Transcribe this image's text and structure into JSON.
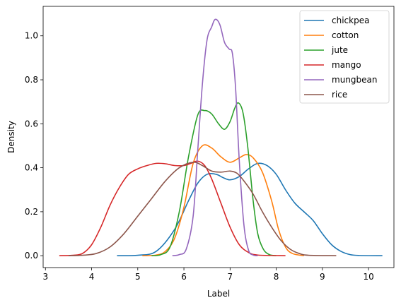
{
  "chart_data": {
    "type": "line",
    "title": "",
    "xlabel": "Label",
    "ylabel": "Density",
    "xlim": [
      2.95,
      10.55
    ],
    "ylim": [
      -0.054,
      1.134
    ],
    "xticks": [
      3,
      4,
      5,
      6,
      7,
      8,
      9,
      10
    ],
    "yticks": [
      0.0,
      0.2,
      0.4,
      0.6,
      0.8,
      1.0
    ],
    "xtick_labels": [
      "3",
      "4",
      "5",
      "6",
      "7",
      "8",
      "9",
      "10"
    ],
    "ytick_labels": [
      "0.0",
      "0.2",
      "0.4",
      "0.6",
      "0.8",
      "1.0"
    ],
    "grid": false,
    "legend_position": "top-right",
    "series": [
      {
        "name": "chickpea",
        "color": "#1f77b4",
        "points": [
          [
            4.55,
            0
          ],
          [
            5.0,
            0.002
          ],
          [
            5.4,
            0.02
          ],
          [
            5.8,
            0.12
          ],
          [
            6.1,
            0.25
          ],
          [
            6.3,
            0.33
          ],
          [
            6.5,
            0.37
          ],
          [
            6.7,
            0.37
          ],
          [
            6.85,
            0.355
          ],
          [
            7.0,
            0.345
          ],
          [
            7.2,
            0.36
          ],
          [
            7.4,
            0.395
          ],
          [
            7.6,
            0.42
          ],
          [
            7.8,
            0.41
          ],
          [
            8.0,
            0.37
          ],
          [
            8.2,
            0.3
          ],
          [
            8.4,
            0.24
          ],
          [
            8.6,
            0.2
          ],
          [
            8.8,
            0.16
          ],
          [
            9.0,
            0.1
          ],
          [
            9.2,
            0.05
          ],
          [
            9.4,
            0.02
          ],
          [
            9.6,
            0.005
          ],
          [
            9.8,
            0.001
          ],
          [
            10.3,
            0
          ]
        ]
      },
      {
        "name": "cotton",
        "color": "#ff7f0e",
        "points": [
          [
            5.1,
            0
          ],
          [
            5.4,
            0.003
          ],
          [
            5.6,
            0.02
          ],
          [
            5.8,
            0.08
          ],
          [
            6.0,
            0.22
          ],
          [
            6.2,
            0.42
          ],
          [
            6.4,
            0.5
          ],
          [
            6.6,
            0.49
          ],
          [
            6.8,
            0.45
          ],
          [
            7.0,
            0.425
          ],
          [
            7.2,
            0.445
          ],
          [
            7.35,
            0.46
          ],
          [
            7.5,
            0.445
          ],
          [
            7.7,
            0.38
          ],
          [
            7.9,
            0.25
          ],
          [
            8.05,
            0.12
          ],
          [
            8.2,
            0.04
          ],
          [
            8.35,
            0.01
          ],
          [
            8.6,
            0
          ]
        ]
      },
      {
        "name": "jute",
        "color": "#2ca02c",
        "points": [
          [
            5.3,
            0
          ],
          [
            5.5,
            0.005
          ],
          [
            5.7,
            0.04
          ],
          [
            5.9,
            0.2
          ],
          [
            6.1,
            0.45
          ],
          [
            6.3,
            0.64
          ],
          [
            6.45,
            0.66
          ],
          [
            6.6,
            0.645
          ],
          [
            6.75,
            0.6
          ],
          [
            6.88,
            0.575
          ],
          [
            7.0,
            0.61
          ],
          [
            7.1,
            0.67
          ],
          [
            7.18,
            0.695
          ],
          [
            7.28,
            0.65
          ],
          [
            7.38,
            0.5
          ],
          [
            7.5,
            0.25
          ],
          [
            7.6,
            0.1
          ],
          [
            7.72,
            0.03
          ],
          [
            7.85,
            0.005
          ],
          [
            8.0,
            0
          ]
        ]
      },
      {
        "name": "mango",
        "color": "#d62728",
        "points": [
          [
            3.3,
            0
          ],
          [
            3.6,
            0.002
          ],
          [
            3.8,
            0.01
          ],
          [
            4.0,
            0.05
          ],
          [
            4.2,
            0.13
          ],
          [
            4.4,
            0.23
          ],
          [
            4.6,
            0.31
          ],
          [
            4.8,
            0.37
          ],
          [
            5.0,
            0.395
          ],
          [
            5.2,
            0.41
          ],
          [
            5.4,
            0.42
          ],
          [
            5.6,
            0.418
          ],
          [
            5.8,
            0.41
          ],
          [
            6.0,
            0.41
          ],
          [
            6.15,
            0.42
          ],
          [
            6.3,
            0.43
          ],
          [
            6.45,
            0.41
          ],
          [
            6.6,
            0.35
          ],
          [
            6.8,
            0.24
          ],
          [
            7.0,
            0.13
          ],
          [
            7.2,
            0.05
          ],
          [
            7.4,
            0.015
          ],
          [
            7.6,
            0.003
          ],
          [
            8.2,
            0
          ]
        ]
      },
      {
        "name": "mungbean",
        "color": "#9467bd",
        "points": [
          [
            5.75,
            0
          ],
          [
            5.9,
            0.005
          ],
          [
            6.05,
            0.03
          ],
          [
            6.2,
            0.18
          ],
          [
            6.3,
            0.48
          ],
          [
            6.4,
            0.78
          ],
          [
            6.5,
            0.98
          ],
          [
            6.6,
            1.04
          ],
          [
            6.68,
            1.075
          ],
          [
            6.78,
            1.05
          ],
          [
            6.88,
            0.97
          ],
          [
            6.98,
            0.94
          ],
          [
            7.05,
            0.92
          ],
          [
            7.12,
            0.76
          ],
          [
            7.2,
            0.43
          ],
          [
            7.3,
            0.14
          ],
          [
            7.4,
            0.025
          ],
          [
            7.5,
            0.003
          ],
          [
            7.6,
            0
          ]
        ]
      },
      {
        "name": "rice",
        "color": "#8c564b",
        "points": [
          [
            3.5,
            0
          ],
          [
            3.8,
            0.002
          ],
          [
            4.1,
            0.01
          ],
          [
            4.4,
            0.04
          ],
          [
            4.7,
            0.1
          ],
          [
            5.0,
            0.18
          ],
          [
            5.3,
            0.26
          ],
          [
            5.6,
            0.34
          ],
          [
            5.9,
            0.4
          ],
          [
            6.2,
            0.425
          ],
          [
            6.4,
            0.41
          ],
          [
            6.6,
            0.385
          ],
          [
            6.8,
            0.38
          ],
          [
            7.0,
            0.385
          ],
          [
            7.15,
            0.375
          ],
          [
            7.3,
            0.34
          ],
          [
            7.5,
            0.28
          ],
          [
            7.7,
            0.2
          ],
          [
            7.9,
            0.13
          ],
          [
            8.1,
            0.07
          ],
          [
            8.3,
            0.03
          ],
          [
            8.5,
            0.01
          ],
          [
            8.7,
            0.002
          ],
          [
            9.3,
            0
          ]
        ]
      }
    ]
  }
}
